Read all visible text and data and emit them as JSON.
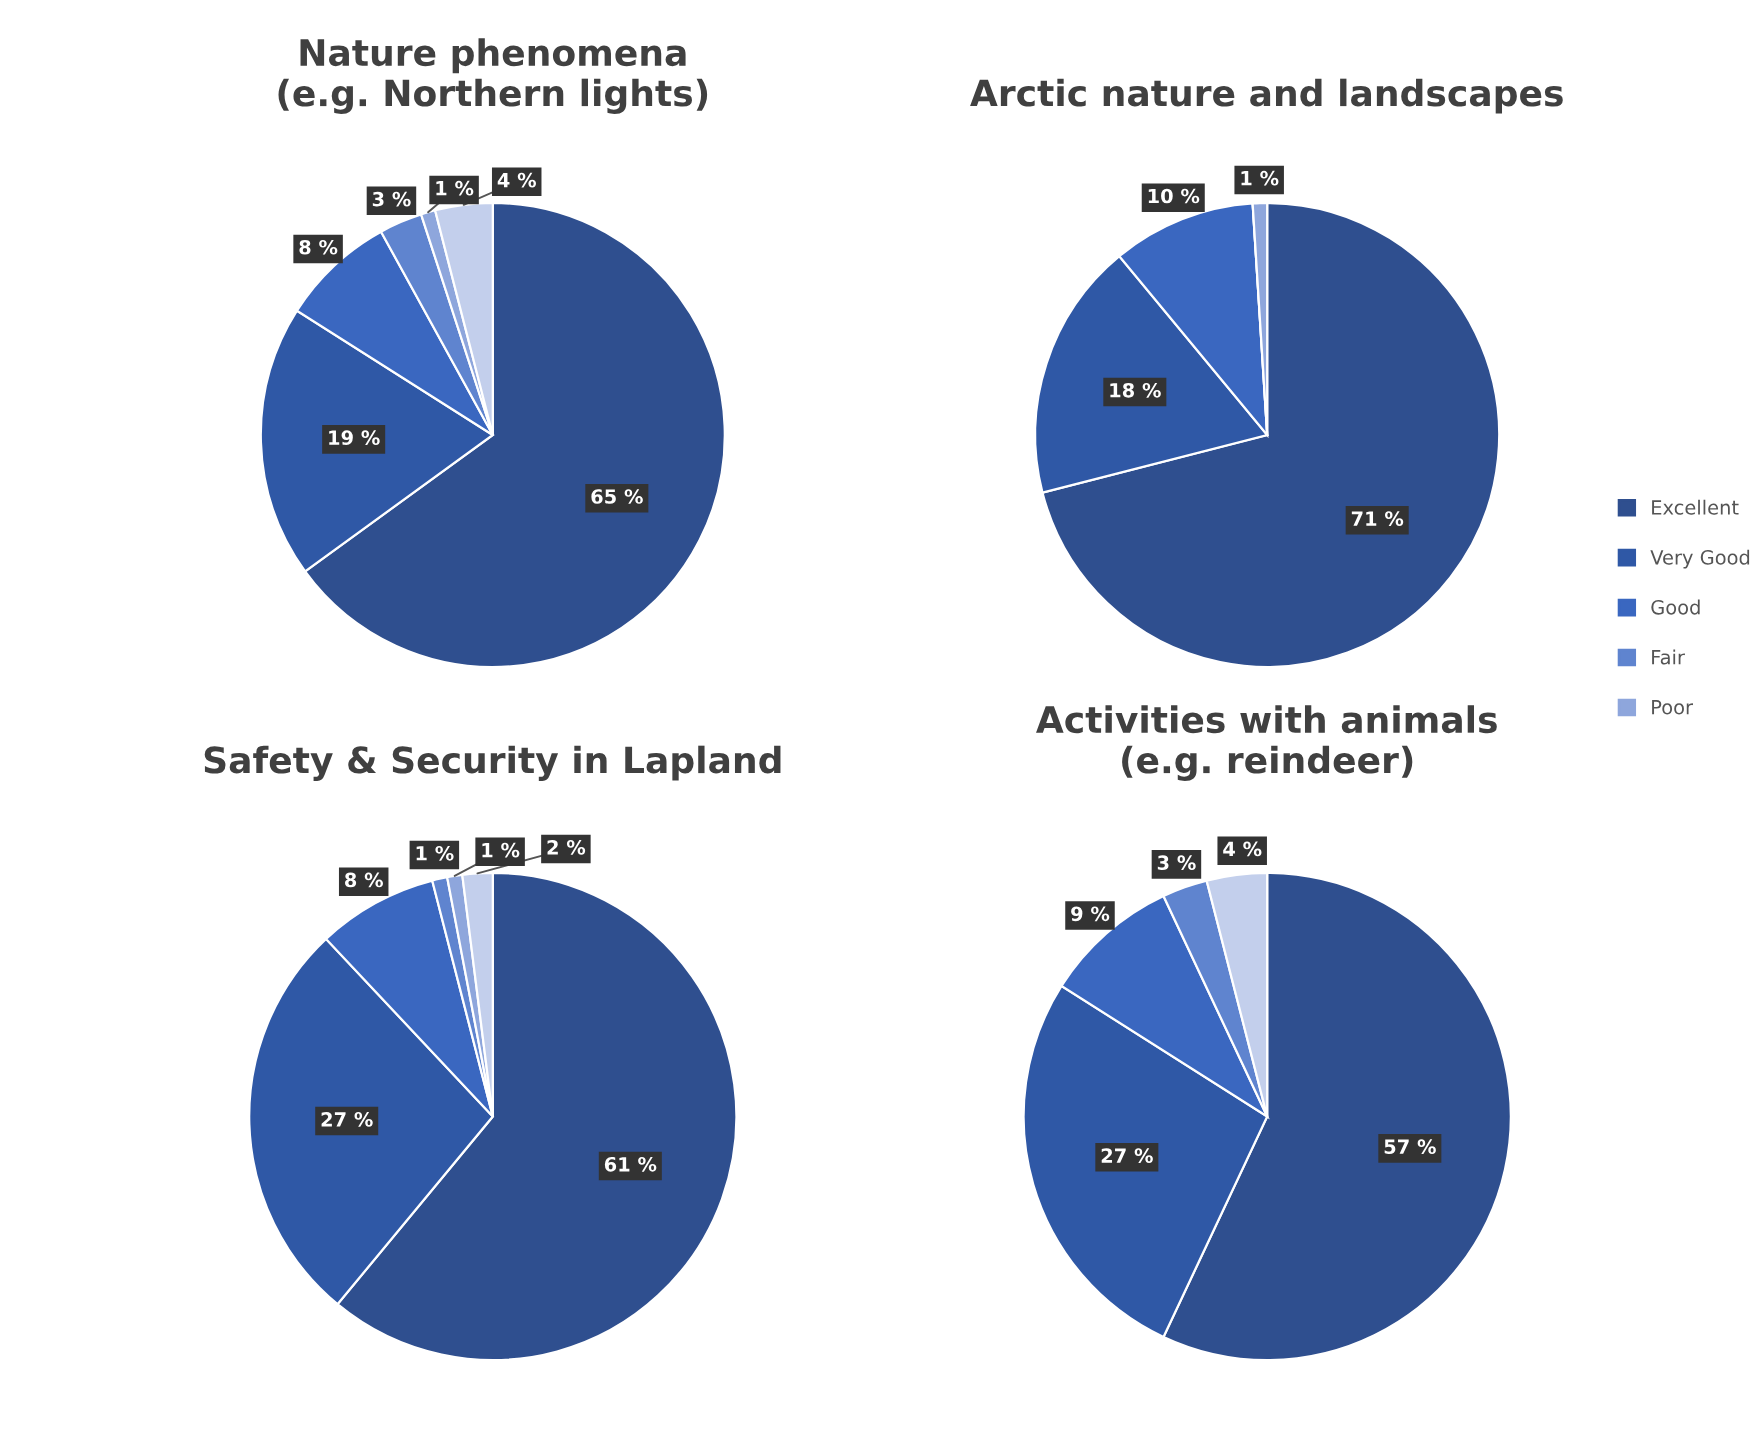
{
  "chart_data": [
    {
      "type": "pie",
      "title": "Nature phenomena\n(e.g. Northern lights)",
      "categories": [
        "Excellent",
        "Very Good",
        "Good",
        "Fair",
        "Poor",
        null
      ],
      "values": [
        65,
        19,
        8,
        3,
        1,
        4
      ],
      "colors": [
        "#2f4f8f",
        "#2f58a6",
        "#3a67c0",
        "#5f84cf",
        "#8ea6dc",
        "#c3cfec"
      ],
      "value_labels": [
        "65 %",
        "19 %",
        "8 %",
        "3 %",
        "1 %",
        "4 %"
      ],
      "legend": "right"
    },
    {
      "type": "pie",
      "title": "Arctic nature and landscapes",
      "categories": [
        null,
        null,
        null,
        null,
        null
      ],
      "values": [
        71,
        18,
        10,
        0,
        1
      ],
      "colors": [
        "#2f4f8f",
        "#2f58a6",
        "#3a67c0",
        "#5f84cf",
        "#8ea6dc"
      ],
      "value_labels": [
        "71 %",
        "18 %",
        "10 %",
        null,
        "1 %"
      ]
    },
    {
      "type": "pie",
      "title": "Safety & Security in Lapland",
      "categories": [
        null,
        null,
        null,
        null,
        null,
        null
      ],
      "values": [
        61,
        27,
        8,
        1,
        1,
        2
      ],
      "colors": [
        "#2f4f8f",
        "#2f58a6",
        "#3a67c0",
        "#5f84cf",
        "#8ea6dc",
        "#c3cfec"
      ],
      "value_labels": [
        "61 %",
        "27 %",
        "8 %",
        "1 %",
        "1 %",
        "2 %"
      ]
    },
    {
      "type": "pie",
      "title": "Activities with animals\n(e.g. reindeer)",
      "categories": [
        null,
        null,
        null,
        null,
        null
      ],
      "values": [
        57,
        27,
        9,
        3,
        4
      ],
      "colors": [
        "#2f4f8f",
        "#2f58a6",
        "#3a67c0",
        "#5f84cf",
        "#c3cfec"
      ],
      "value_labels": [
        "57 %",
        "27 %",
        "9 %",
        "3 %",
        "4 %"
      ]
    }
  ]
}
